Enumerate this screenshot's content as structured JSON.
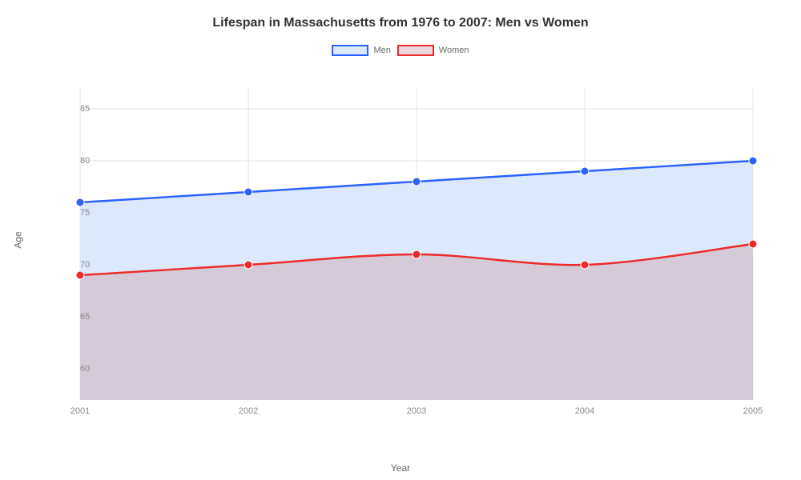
{
  "chart": {
    "type": "area-line",
    "title": "Lifespan in Massachusetts from 1976 to 2007: Men vs Women",
    "title_fontsize": 16,
    "title_color": "#333333",
    "background_color": "#ffffff",
    "plot_background": "#ffffff",
    "xlabel": "Year",
    "ylabel": "Age",
    "axis_label_color": "#666666",
    "axis_label_fontsize": 12,
    "tick_label_color": "#888888",
    "tick_label_fontsize": 11,
    "grid_color": "#e5e5e5",
    "grid_width": 1,
    "x_categories": [
      "2001",
      "2002",
      "2003",
      "2004",
      "2005"
    ],
    "y_ticks": [
      60,
      65,
      70,
      75,
      80,
      85
    ],
    "ylim": [
      57,
      87
    ],
    "legend": {
      "position": "top",
      "items": [
        {
          "label": "Men",
          "stroke": "#2b62ff",
          "fill": "#dce8fb"
        },
        {
          "label": "Women",
          "stroke": "#ee2b2b",
          "fill": "#e9d7e0"
        }
      ]
    },
    "series": [
      {
        "name": "Men",
        "stroke": "#2b62ff",
        "fill": "#dce8fb",
        "fill_opacity": 1,
        "line_width": 2.5,
        "marker": "circle",
        "marker_size": 5,
        "marker_fill": "#2b62ff",
        "values": [
          76,
          77,
          78,
          79,
          80
        ]
      },
      {
        "name": "Women",
        "stroke": "#ee2b2b",
        "fill": "#cfb1ba",
        "fill_opacity": 0.55,
        "line_width": 2.5,
        "marker": "circle",
        "marker_size": 5,
        "marker_fill": "#ee2b2b",
        "values": [
          69,
          70,
          71,
          70,
          72
        ]
      }
    ],
    "curve": "monotone"
  }
}
